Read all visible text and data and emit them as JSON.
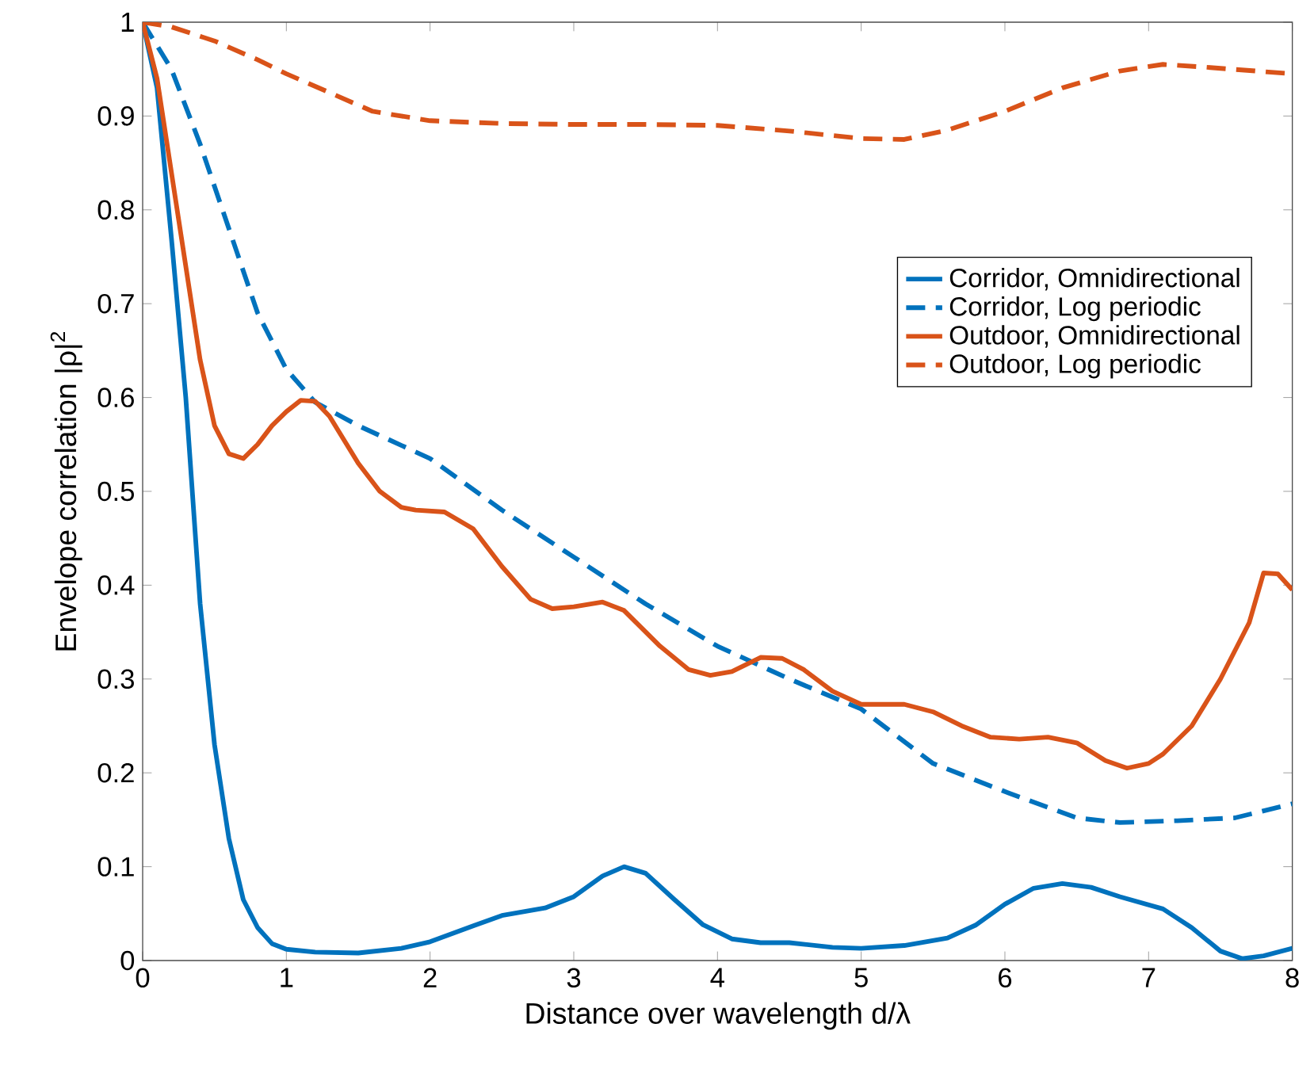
{
  "chart_data": {
    "type": "line",
    "xlabel": "Distance over wavelength d/λ",
    "ylabel": "Envelope correlation |ρ|$^{2}$",
    "xlim": [
      0,
      8
    ],
    "ylim": [
      0,
      1
    ],
    "xticks": [
      0,
      1,
      2,
      3,
      4,
      5,
      6,
      7,
      8
    ],
    "yticks": [
      0,
      0.1,
      0.2,
      0.3,
      0.4,
      0.5,
      0.6,
      0.7,
      0.8,
      0.9,
      1
    ],
    "legend": "right",
    "grid": false,
    "marker": "none",
    "series": [
      {
        "name": "Corridor, Omnidirectional",
        "color": "#0072bd",
        "line_style": "solid",
        "x": [
          0,
          0.1,
          0.2,
          0.3,
          0.4,
          0.5,
          0.6,
          0.7,
          0.8,
          0.9,
          1.0,
          1.2,
          1.5,
          1.8,
          2.0,
          2.3,
          2.5,
          2.8,
          3.0,
          3.2,
          3.35,
          3.5,
          3.7,
          3.9,
          4.1,
          4.3,
          4.5,
          4.8,
          5.0,
          5.3,
          5.6,
          5.8,
          6.0,
          6.2,
          6.4,
          6.6,
          6.8,
          7.1,
          7.3,
          7.5,
          7.65,
          7.8,
          8.0
        ],
        "values": [
          1,
          0.93,
          0.77,
          0.6,
          0.38,
          0.23,
          0.13,
          0.065,
          0.035,
          0.018,
          0.012,
          0.009,
          0.008,
          0.013,
          0.02,
          0.037,
          0.048,
          0.056,
          0.068,
          0.09,
          0.1,
          0.093,
          0.065,
          0.038,
          0.023,
          0.019,
          0.019,
          0.014,
          0.013,
          0.016,
          0.024,
          0.038,
          0.06,
          0.077,
          0.082,
          0.078,
          0.068,
          0.055,
          0.035,
          0.01,
          0.002,
          0.005,
          0.013
        ]
      },
      {
        "name": "Corridor, Log periodic",
        "color": "#0072bd",
        "line_style": "dashed",
        "x": [
          0,
          0.2,
          0.4,
          0.6,
          0.8,
          1.0,
          1.2,
          1.5,
          2.0,
          2.5,
          3.0,
          3.5,
          4.0,
          4.5,
          5.0,
          5.5,
          6.0,
          6.5,
          6.8,
          7.2,
          7.6,
          8.0
        ],
        "values": [
          1,
          0.95,
          0.87,
          0.78,
          0.69,
          0.63,
          0.595,
          0.57,
          0.535,
          0.48,
          0.43,
          0.38,
          0.335,
          0.3,
          0.268,
          0.21,
          0.18,
          0.152,
          0.147,
          0.149,
          0.152,
          0.167
        ]
      },
      {
        "name": "Outdoor, Omnidirectional",
        "color": "#d95319",
        "line_style": "solid",
        "x": [
          0,
          0.1,
          0.2,
          0.3,
          0.4,
          0.5,
          0.6,
          0.7,
          0.8,
          0.9,
          1.0,
          1.1,
          1.2,
          1.3,
          1.5,
          1.65,
          1.8,
          1.9,
          2.1,
          2.3,
          2.5,
          2.7,
          2.85,
          3.0,
          3.2,
          3.35,
          3.6,
          3.8,
          3.95,
          4.1,
          4.3,
          4.45,
          4.6,
          4.8,
          5.0,
          5.3,
          5.5,
          5.7,
          5.9,
          6.1,
          6.3,
          6.5,
          6.7,
          6.85,
          7.0,
          7.1,
          7.3,
          7.5,
          7.7,
          7.8,
          7.9,
          8.0
        ],
        "values": [
          1,
          0.94,
          0.84,
          0.74,
          0.64,
          0.57,
          0.54,
          0.535,
          0.55,
          0.57,
          0.585,
          0.597,
          0.596,
          0.58,
          0.53,
          0.5,
          0.483,
          0.48,
          0.478,
          0.46,
          0.42,
          0.385,
          0.375,
          0.377,
          0.382,
          0.373,
          0.335,
          0.31,
          0.304,
          0.308,
          0.323,
          0.322,
          0.31,
          0.287,
          0.273,
          0.273,
          0.265,
          0.25,
          0.238,
          0.236,
          0.238,
          0.232,
          0.213,
          0.205,
          0.21,
          0.22,
          0.25,
          0.3,
          0.36,
          0.413,
          0.412,
          0.395
        ]
      },
      {
        "name": "Outdoor, Log periodic",
        "color": "#d95319",
        "line_style": "dashed",
        "x": [
          0,
          0.2,
          0.5,
          0.8,
          1.0,
          1.3,
          1.6,
          2.0,
          2.5,
          3.0,
          3.5,
          4.0,
          4.5,
          5.0,
          5.3,
          5.6,
          6.0,
          6.4,
          6.8,
          7.1,
          7.4,
          8.0
        ],
        "values": [
          1,
          0.995,
          0.98,
          0.96,
          0.945,
          0.925,
          0.905,
          0.895,
          0.892,
          0.891,
          0.891,
          0.89,
          0.884,
          0.876,
          0.875,
          0.885,
          0.905,
          0.93,
          0.948,
          0.955,
          0.952,
          0.945
        ]
      }
    ]
  }
}
